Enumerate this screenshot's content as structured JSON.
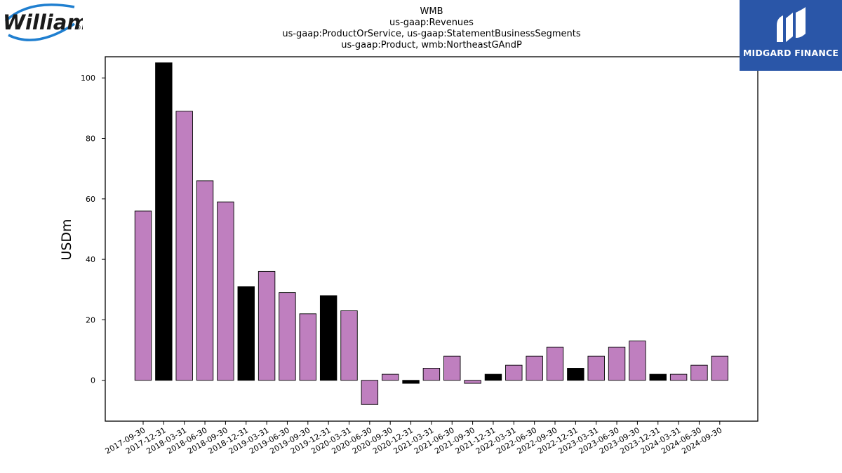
{
  "logos": {
    "left_text": "Williams",
    "left_mark": "®",
    "right_text": "MIDGARD FINANCE",
    "right_bg_color": "#2a56a8"
  },
  "chart_data": {
    "type": "bar",
    "title_lines": [
      "WMB",
      "us-gaap:Revenues",
      "us-gaap:ProductOrService, us-gaap:StatementBusinessSegments",
      "us-gaap:Product, wmb:NortheastGAndP"
    ],
    "xlabel": "",
    "ylabel": "USDm",
    "ylim": [
      -13.5,
      107
    ],
    "yticks": [
      0,
      20,
      40,
      60,
      80,
      100
    ],
    "grid": false,
    "colors": {
      "quarter": "#bf7fbf",
      "year_end": "#000000",
      "edge": "#000000"
    },
    "categories": [
      "2017-09-30",
      "2017-12-31",
      "2018-03-31",
      "2018-06-30",
      "2018-09-30",
      "2018-12-31",
      "2019-03-31",
      "2019-06-30",
      "2019-09-30",
      "2019-12-31",
      "2020-03-31",
      "2020-06-30",
      "2020-09-30",
      "2020-12-31",
      "2021-03-31",
      "2021-06-30",
      "2021-09-30",
      "2021-12-31",
      "2022-03-31",
      "2022-06-30",
      "2022-09-30",
      "2022-12-31",
      "2023-03-31",
      "2023-06-30",
      "2023-09-30",
      "2023-12-31",
      "2024-03-31",
      "2024-06-30",
      "2024-09-30"
    ],
    "values": [
      56,
      105,
      89,
      66,
      59,
      31,
      36,
      29,
      22,
      28,
      23,
      -8,
      2,
      -1,
      4,
      8,
      -1,
      2,
      5,
      8,
      11,
      4,
      8,
      11,
      13,
      2,
      2,
      5,
      8
    ],
    "highlight": [
      false,
      true,
      false,
      false,
      false,
      true,
      false,
      false,
      false,
      true,
      false,
      false,
      false,
      true,
      false,
      false,
      false,
      true,
      false,
      false,
      false,
      true,
      false,
      false,
      false,
      true,
      false,
      false,
      false
    ]
  }
}
